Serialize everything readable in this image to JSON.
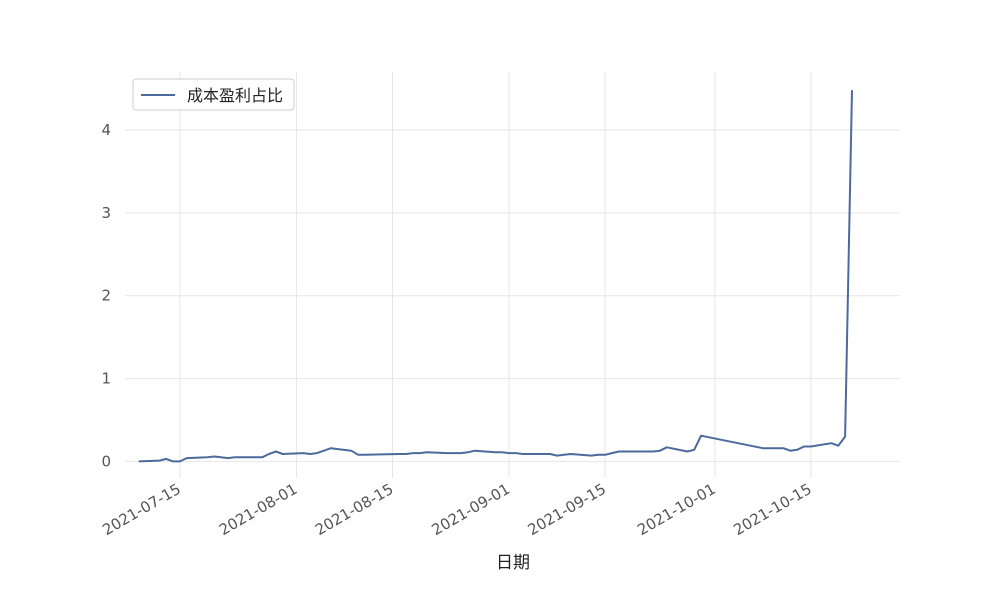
{
  "chart_data": {
    "type": "line",
    "xlabel": "日期",
    "ylabel": "",
    "ylim": [
      -0.2,
      4.7
    ],
    "xlim": [
      "2021-07-07",
      "2021-10-28"
    ],
    "yticks": [
      0,
      1,
      2,
      3,
      4
    ],
    "xticks": [
      "2021-07-15",
      "2021-08-01",
      "2021-08-15",
      "2021-09-01",
      "2021-09-15",
      "2021-10-01",
      "2021-10-15"
    ],
    "grid": true,
    "legend_position": "top-left",
    "color": "#4c6a9c",
    "series": [
      {
        "name": "成本盈利占比",
        "points": [
          [
            "2021-07-09",
            0.0
          ],
          [
            "2021-07-12",
            0.01
          ],
          [
            "2021-07-13",
            0.03
          ],
          [
            "2021-07-14",
            0.0
          ],
          [
            "2021-07-15",
            0.0
          ],
          [
            "2021-07-16",
            0.04
          ],
          [
            "2021-07-19",
            0.05
          ],
          [
            "2021-07-20",
            0.06
          ],
          [
            "2021-07-21",
            0.05
          ],
          [
            "2021-07-22",
            0.04
          ],
          [
            "2021-07-23",
            0.05
          ],
          [
            "2021-07-26",
            0.05
          ],
          [
            "2021-07-27",
            0.05
          ],
          [
            "2021-07-28",
            0.09
          ],
          [
            "2021-07-29",
            0.12
          ],
          [
            "2021-07-30",
            0.09
          ],
          [
            "2021-08-02",
            0.1
          ],
          [
            "2021-08-03",
            0.09
          ],
          [
            "2021-08-04",
            0.1
          ],
          [
            "2021-08-05",
            0.13
          ],
          [
            "2021-08-06",
            0.16
          ],
          [
            "2021-08-09",
            0.13
          ],
          [
            "2021-08-10",
            0.08
          ],
          [
            "2021-08-11",
            0.08
          ],
          [
            "2021-08-16",
            0.09
          ],
          [
            "2021-08-17",
            0.09
          ],
          [
            "2021-08-18",
            0.1
          ],
          [
            "2021-08-19",
            0.1
          ],
          [
            "2021-08-20",
            0.11
          ],
          [
            "2021-08-23",
            0.1
          ],
          [
            "2021-08-24",
            0.1
          ],
          [
            "2021-08-25",
            0.1
          ],
          [
            "2021-08-26",
            0.11
          ],
          [
            "2021-08-27",
            0.13
          ],
          [
            "2021-08-30",
            0.11
          ],
          [
            "2021-08-31",
            0.11
          ],
          [
            "2021-09-01",
            0.1
          ],
          [
            "2021-09-02",
            0.1
          ],
          [
            "2021-09-03",
            0.09
          ],
          [
            "2021-09-06",
            0.09
          ],
          [
            "2021-09-07",
            0.09
          ],
          [
            "2021-09-08",
            0.07
          ],
          [
            "2021-09-09",
            0.08
          ],
          [
            "2021-09-10",
            0.09
          ],
          [
            "2021-09-13",
            0.07
          ],
          [
            "2021-09-14",
            0.08
          ],
          [
            "2021-09-15",
            0.08
          ],
          [
            "2021-09-16",
            0.1
          ],
          [
            "2021-09-17",
            0.12
          ],
          [
            "2021-09-22",
            0.12
          ],
          [
            "2021-09-23",
            0.13
          ],
          [
            "2021-09-24",
            0.17
          ],
          [
            "2021-09-27",
            0.12
          ],
          [
            "2021-09-28",
            0.14
          ],
          [
            "2021-09-29",
            0.31
          ],
          [
            "2021-10-08",
            0.16
          ],
          [
            "2021-10-11",
            0.16
          ],
          [
            "2021-10-12",
            0.13
          ],
          [
            "2021-10-13",
            0.14
          ],
          [
            "2021-10-14",
            0.18
          ],
          [
            "2021-10-15",
            0.18
          ],
          [
            "2021-10-18",
            0.22
          ],
          [
            "2021-10-19",
            0.19
          ],
          [
            "2021-10-20",
            0.3
          ],
          [
            "2021-10-21",
            4.48
          ]
        ]
      }
    ]
  }
}
